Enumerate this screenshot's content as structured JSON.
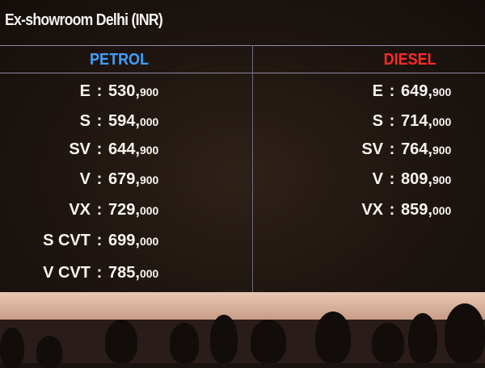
{
  "slide": {
    "title": "Ex-showroom Delhi (INR)",
    "columns": [
      {
        "heading": "PETROL",
        "color": "#3fa0ff",
        "rows": [
          {
            "variant": "E",
            "price_main": "530,",
            "price_tail": "900"
          },
          {
            "variant": "S",
            "price_main": "594,",
            "price_tail": "000"
          },
          {
            "variant": "SV",
            "price_main": "644,",
            "price_tail": "900"
          },
          {
            "variant": "V",
            "price_main": "679,",
            "price_tail": "900"
          },
          {
            "variant": "VX",
            "price_main": "729,",
            "price_tail": "000"
          },
          {
            "variant": "S CVT",
            "price_main": "699,",
            "price_tail": "000"
          },
          {
            "variant": "V CVT",
            "price_main": "785,",
            "price_tail": "000"
          }
        ]
      },
      {
        "heading": "DIESEL",
        "color": "#ff2a2a",
        "rows": [
          {
            "variant": "E",
            "price_main": "649,",
            "price_tail": "900"
          },
          {
            "variant": "S",
            "price_main": "714,",
            "price_tail": "000"
          },
          {
            "variant": "SV",
            "price_main": "764,",
            "price_tail": "900"
          },
          {
            "variant": "V",
            "price_main": "809,",
            "price_tail": "900"
          },
          {
            "variant": "VX",
            "price_main": "859,",
            "price_tail": "000"
          }
        ]
      }
    ],
    "separator": ":"
  }
}
